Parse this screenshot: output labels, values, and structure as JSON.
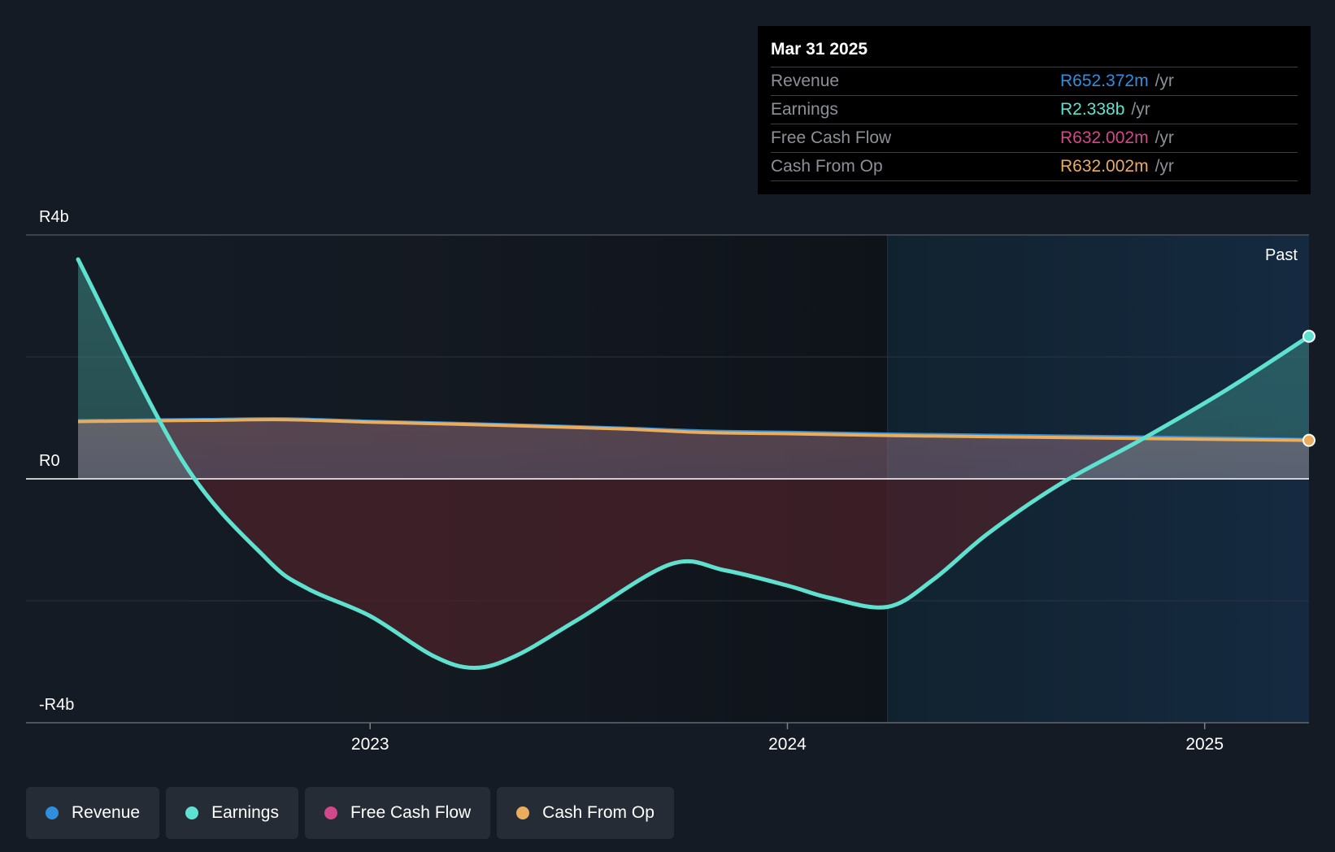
{
  "chart_data": {
    "type": "line",
    "title": "",
    "xlabel": "",
    "ylabel": "",
    "ylim": [
      -4,
      4
    ],
    "x_range": [
      2022.3,
      2025.25
    ],
    "y_tick_labels": [
      "R4b",
      "R0",
      "-R4b"
    ],
    "x_ticks": [
      {
        "value": 2023,
        "label": "2023"
      },
      {
        "value": 2024,
        "label": "2024"
      },
      {
        "value": 2025,
        "label": "2025"
      }
    ],
    "past_label": "Past",
    "past_start": 2024.24,
    "series": [
      {
        "name": "Revenue",
        "color": "#2f8fdc",
        "x": [
          2022.3,
          2022.6,
          2022.8,
          2023.0,
          2023.3,
          2023.6,
          2023.8,
          2024.0,
          2024.25,
          2024.5,
          2024.75,
          2025.0,
          2025.25
        ],
        "values": [
          0.96,
          0.98,
          0.99,
          0.95,
          0.9,
          0.84,
          0.79,
          0.77,
          0.74,
          0.72,
          0.7,
          0.68,
          0.652
        ]
      },
      {
        "name": "Earnings",
        "color": "#5ee1cf",
        "x": [
          2022.3,
          2022.55,
          2022.75,
          2022.85,
          2023.0,
          2023.15,
          2023.25,
          2023.35,
          2023.5,
          2023.72,
          2023.85,
          2024.0,
          2024.1,
          2024.24,
          2024.35,
          2024.48,
          2024.65,
          2024.85,
          2025.05,
          2025.25
        ],
        "values": [
          3.6,
          0.3,
          -1.3,
          -1.8,
          -2.25,
          -2.9,
          -3.1,
          -2.9,
          -2.3,
          -1.4,
          -1.5,
          -1.75,
          -1.95,
          -2.1,
          -1.65,
          -0.9,
          -0.1,
          0.65,
          1.45,
          2.338
        ]
      },
      {
        "name": "Free Cash Flow",
        "color": "#d2488a",
        "x": [
          2022.3,
          2022.6,
          2022.8,
          2023.0,
          2023.3,
          2023.6,
          2023.8,
          2024.0,
          2024.25,
          2024.5,
          2024.75,
          2025.0,
          2025.25
        ],
        "values": [
          0.94,
          0.96,
          0.97,
          0.93,
          0.88,
          0.82,
          0.76,
          0.74,
          0.71,
          0.69,
          0.67,
          0.65,
          0.632
        ]
      },
      {
        "name": "Cash From Op",
        "color": "#e9ad5d",
        "x": [
          2022.3,
          2022.6,
          2022.8,
          2023.0,
          2023.3,
          2023.6,
          2023.8,
          2024.0,
          2024.25,
          2024.5,
          2024.75,
          2025.0,
          2025.25
        ],
        "values": [
          0.94,
          0.96,
          0.97,
          0.93,
          0.88,
          0.82,
          0.76,
          0.74,
          0.71,
          0.69,
          0.67,
          0.65,
          0.632
        ]
      }
    ]
  },
  "tooltip": {
    "date": "Mar 31 2025",
    "rows": [
      {
        "label": "Revenue",
        "value": "R652.372m",
        "unit": "/yr",
        "color": "#2f8fdc"
      },
      {
        "label": "Earnings",
        "value": "R2.338b",
        "unit": "/yr",
        "color": "#5ee1cf"
      },
      {
        "label": "Free Cash Flow",
        "value": "R632.002m",
        "unit": "/yr",
        "color": "#d2488a"
      },
      {
        "label": "Cash From Op",
        "value": "R632.002m",
        "unit": "/yr",
        "color": "#e9ad5d"
      }
    ]
  },
  "legend": [
    {
      "label": "Revenue",
      "color": "#2f8fdc"
    },
    {
      "label": "Earnings",
      "color": "#5ee1cf"
    },
    {
      "label": "Free Cash Flow",
      "color": "#d2488a"
    },
    {
      "label": "Cash From Op",
      "color": "#e9ad5d"
    }
  ]
}
